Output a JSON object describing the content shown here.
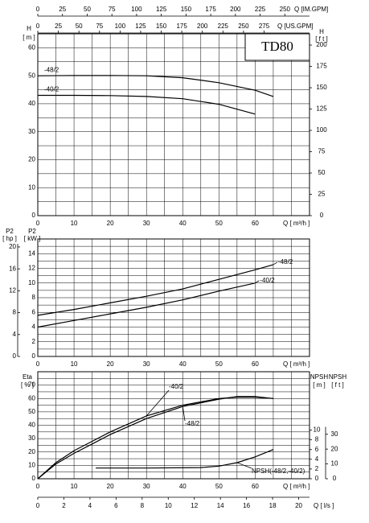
{
  "chart_data": [
    {
      "type": "line",
      "title": "TD80",
      "xlabel": "Q [ m³/h ]",
      "xlim": [
        0,
        75
      ],
      "xticks": [
        0,
        10,
        20,
        30,
        40,
        50,
        60
      ],
      "xgrid": [
        0,
        5,
        10,
        15,
        20,
        25,
        30,
        35,
        40,
        45,
        50,
        55,
        60,
        65,
        70,
        75
      ],
      "ylabel": [
        "H",
        "[ m ]"
      ],
      "ylim": [
        0,
        65
      ],
      "yticks": [
        0,
        10,
        20,
        30,
        40,
        50,
        60
      ],
      "ygrid": [
        0,
        5,
        10,
        15,
        20,
        25,
        30,
        35,
        40,
        45,
        50,
        55,
        60,
        65
      ],
      "y2label": [
        "H",
        "[ f t ]"
      ],
      "y2lim": [
        0,
        213.25
      ],
      "y2ticks": [
        0,
        25,
        50,
        75,
        100,
        125,
        150,
        175,
        200
      ],
      "top_axes": [
        {
          "label": "Q [IM.GPM]",
          "lim": [
            0,
            274.97
          ],
          "ticks": [
            0,
            25,
            50,
            75,
            100,
            125,
            150,
            175,
            200,
            225,
            250
          ]
        },
        {
          "label": "Q [US.GPM]",
          "lim": [
            0,
            330.2
          ],
          "ticks": [
            0,
            25,
            50,
            75,
            100,
            125,
            150,
            175,
            200,
            225,
            250,
            275
          ]
        }
      ],
      "series": [
        {
          "name": "-48/2",
          "color": "#000000",
          "x": [
            0,
            10,
            20,
            30,
            40,
            50,
            60,
            65
          ],
          "values": [
            50,
            50.1,
            50.1,
            50,
            49.3,
            47.5,
            44.8,
            42.6
          ]
        },
        {
          "name": "-40/2",
          "color": "#000000",
          "x": [
            0,
            10,
            20,
            30,
            40,
            50,
            60
          ],
          "values": [
            43,
            43,
            42.9,
            42.6,
            41.8,
            39.8,
            36.3
          ]
        }
      ]
    },
    {
      "type": "line",
      "xlabel": "Q [ m³/h ]",
      "xlim": [
        0,
        75
      ],
      "xticks": [
        0,
        10,
        20,
        30,
        40,
        50,
        60
      ],
      "xgrid": [
        0,
        5,
        10,
        15,
        20,
        25,
        30,
        35,
        40,
        45,
        50,
        55,
        60,
        65,
        70,
        75
      ],
      "ylabel": [
        "P2",
        "[ kW ]"
      ],
      "ylim": [
        0,
        16
      ],
      "yticks": [
        0,
        2,
        4,
        6,
        8,
        10,
        12,
        14
      ],
      "ygrid": [
        0,
        1,
        2,
        3,
        4,
        5,
        6,
        7,
        8,
        9,
        10,
        11,
        12,
        13,
        14,
        15,
        16
      ],
      "y2label": [
        "P2",
        "[ hp ]"
      ],
      "y2lim": [
        0,
        21.46
      ],
      "y2ticks": [
        0,
        4,
        8,
        12,
        16,
        20
      ],
      "series": [
        {
          "name": "-48/2",
          "color": "#000000",
          "x": [
            0,
            10,
            20,
            30,
            40,
            50,
            60,
            65
          ],
          "values": [
            5.6,
            6.4,
            7.3,
            8.2,
            9.2,
            10.5,
            11.8,
            12.5
          ]
        },
        {
          "name": "-40/2",
          "color": "#000000",
          "x": [
            0,
            10,
            20,
            30,
            40,
            50,
            60
          ],
          "values": [
            4,
            4.9,
            5.8,
            6.7,
            7.7,
            8.9,
            10
          ]
        }
      ]
    },
    {
      "type": "line",
      "xlabel": "Q [ m³/h ]",
      "xlim": [
        0,
        75
      ],
      "xticks": [
        0,
        10,
        20,
        30,
        40,
        50,
        60
      ],
      "xgrid": [
        0,
        5,
        10,
        15,
        20,
        25,
        30,
        35,
        40,
        45,
        50,
        55,
        60,
        65,
        70,
        75
      ],
      "ylabel": [
        "Eta",
        "[ % ]"
      ],
      "ylim": [
        0,
        80
      ],
      "yticks": [
        0,
        10,
        20,
        30,
        40,
        50,
        60,
        70
      ],
      "ygrid": [
        0,
        5,
        10,
        15,
        20,
        25,
        30,
        35,
        40,
        45,
        50,
        55,
        60,
        65,
        70,
        75,
        80
      ],
      "y2label": [
        "NPSH",
        "[ m ]"
      ],
      "y2lim": [
        0,
        22
      ],
      "y2ticks": [
        0,
        2,
        4,
        6,
        8,
        10
      ],
      "y3label": [
        "NPSH",
        "[ f t ]"
      ],
      "y3lim": [
        0,
        72.18
      ],
      "y3ticks": [
        0,
        10,
        20,
        30
      ],
      "bottom_axis": {
        "label": "Q [ l/s ]",
        "lim": [
          0,
          20.83
        ],
        "ticks": [
          0,
          2,
          4,
          6,
          8,
          10,
          12,
          14,
          16,
          18,
          20
        ]
      },
      "series": [
        {
          "name": "-40/2",
          "color": "#000000",
          "x": [
            0,
            5,
            10,
            15,
            20,
            30,
            40,
            50,
            55,
            60,
            65
          ],
          "values": [
            0,
            12,
            21,
            28,
            35,
            47,
            55,
            60,
            61,
            61,
            60
          ]
        },
        {
          "name": "-48/2",
          "color": "#000000",
          "x": [
            0,
            5,
            10,
            15,
            20,
            30,
            40,
            50,
            55,
            60,
            65
          ],
          "values": [
            0,
            11,
            19,
            26,
            33,
            45,
            54,
            59.5,
            61.5,
            61.5,
            60
          ]
        },
        {
          "name": "NPSH(-48/2,-40/2)",
          "color": "#000000",
          "axis": "y2",
          "x": [
            16,
            30,
            45,
            50,
            55,
            60,
            65
          ],
          "values": [
            2.2,
            2.2,
            2.3,
            2.6,
            3.3,
            4.5,
            6
          ]
        }
      ]
    }
  ]
}
